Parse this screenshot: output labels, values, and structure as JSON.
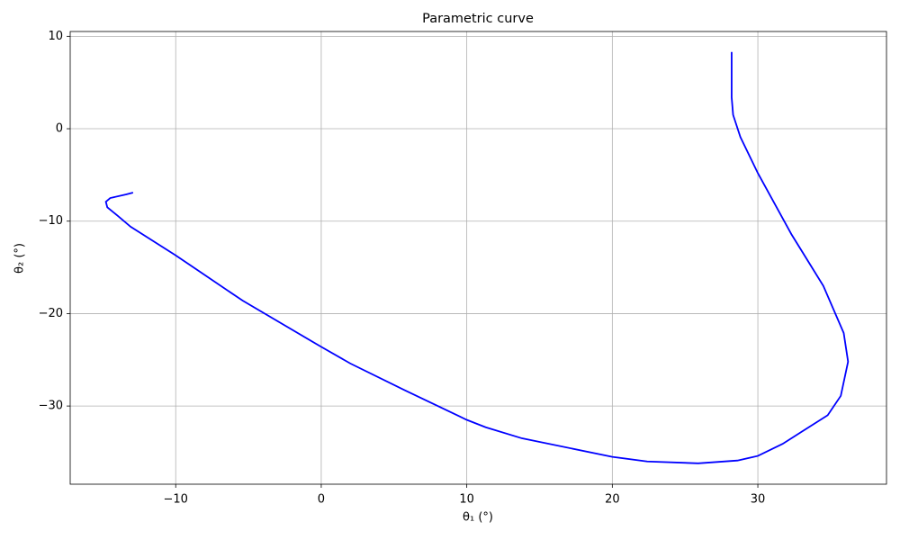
{
  "chart_data": {
    "type": "line",
    "title": "Parametric curve",
    "x_label": "θ₁ (°)",
    "y_label": "θ₂ (°)",
    "series": [
      {
        "color": "#0000ff",
        "x": [
          -12.93,
          -13.4,
          -14.5,
          -14.8,
          -14.7,
          -14.0,
          -13.1,
          -10.0,
          -8.5,
          -5.4,
          0.0,
          2.0,
          5.75,
          10.0,
          11.3,
          13.8,
          20.0,
          22.4,
          25.9,
          28.6,
          30.0,
          31.7,
          34.8,
          35.7,
          36.2,
          35.9,
          34.5,
          32.3,
          30.0,
          28.8,
          28.3,
          28.2,
          28.2
        ],
        "values": [
          -6.91,
          -7.1,
          -7.5,
          -7.9,
          -8.5,
          -9.4,
          -10.6,
          -13.7,
          -15.3,
          -18.6,
          -23.6,
          -25.4,
          -28.3,
          -31.5,
          -32.3,
          -33.5,
          -35.5,
          -36.0,
          -36.2,
          -35.9,
          -35.4,
          -34.1,
          -31.0,
          -28.9,
          -25.2,
          -22.1,
          -17.0,
          -11.4,
          -4.8,
          -0.9,
          1.5,
          3.4,
          8.3
        ]
      }
    ],
    "xlim": [
      -17.25,
      38.84
    ],
    "ylim": [
      -38.46,
      10.52
    ],
    "xticks": [
      {
        "value": -10,
        "label": "−10"
      },
      0,
      10,
      20,
      30
    ],
    "yticks": [
      {
        "value": -30,
        "label": "−30"
      },
      {
        "value": -20,
        "label": "−20"
      },
      {
        "value": -10,
        "label": "−10"
      },
      0,
      10
    ],
    "grid": true
  }
}
